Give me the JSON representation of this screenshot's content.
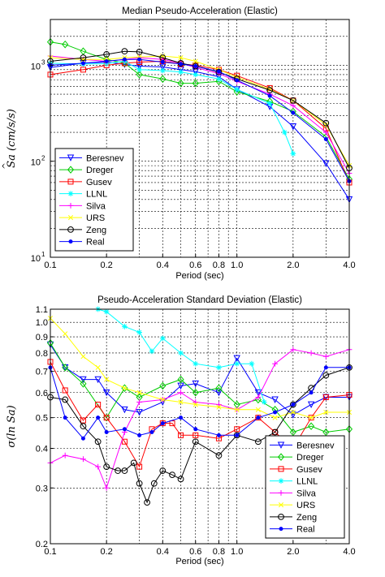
{
  "chart_data": [
    {
      "type": "line",
      "title": "Median Pseudo-Acceleration (Elastic)",
      "xlabel": "Period (sec)",
      "ylabel": "Sa (cm/s/s)",
      "ylabel_hat": "^",
      "xscale": "log",
      "yscale": "log",
      "xlim": [
        0.1,
        4.0
      ],
      "ylim": [
        10,
        3000
      ],
      "xticks": [
        {
          "v": 0.1,
          "label": "0.1"
        },
        {
          "v": 0.2,
          "label": "0.2"
        },
        {
          "v": 0.4,
          "label": "0.4"
        },
        {
          "v": 0.6,
          "label": "0.6"
        },
        {
          "v": 0.8,
          "label": "0.8"
        },
        {
          "v": 1.0,
          "label": "1.0"
        },
        {
          "v": 2.0,
          "label": "2.0"
        },
        {
          "v": 4.0,
          "label": "4.0"
        }
      ],
      "yticks": [
        {
          "v": 10,
          "base": "10",
          "exp": "1"
        },
        {
          "v": 100,
          "base": "10",
          "exp": "2"
        },
        {
          "v": 1000,
          "base": "10",
          "exp": "3"
        }
      ],
      "grid": true,
      "legend_position": "lower-left",
      "series": [
        {
          "name": "Beresnev",
          "color": "#0000ff",
          "marker": "triangle-down",
          "x": [
            0.1,
            0.15,
            0.2,
            0.25,
            0.3,
            0.4,
            0.5,
            0.6,
            0.8,
            1.0,
            1.5,
            2.0,
            3.0,
            4.0
          ],
          "y": [
            950,
            1050,
            1080,
            1020,
            980,
            960,
            900,
            860,
            760,
            560,
            370,
            230,
            95,
            40
          ]
        },
        {
          "name": "Dreger",
          "color": "#00cc00",
          "marker": "diamond",
          "x": [
            0.1,
            0.12,
            0.15,
            0.2,
            0.25,
            0.3,
            0.4,
            0.5,
            0.6,
            0.8,
            1.0,
            1.5,
            2.0,
            3.0,
            4.0
          ],
          "y": [
            1750,
            1650,
            1400,
            1150,
            1050,
            800,
            720,
            650,
            650,
            680,
            530,
            420,
            330,
            180,
            65
          ]
        },
        {
          "name": "Gusev",
          "color": "#ff0000",
          "marker": "square",
          "x": [
            0.1,
            0.15,
            0.2,
            0.25,
            0.3,
            0.4,
            0.5,
            0.6,
            0.8,
            1.0,
            1.5,
            2.0,
            3.0,
            4.0
          ],
          "y": [
            800,
            900,
            1000,
            1050,
            1080,
            1100,
            1030,
            1000,
            900,
            780,
            580,
            430,
            220,
            60
          ]
        },
        {
          "name": "LLNL",
          "color": "#00ffff",
          "marker": "star",
          "x": [
            0.1,
            0.15,
            0.2,
            0.25,
            0.3,
            0.4,
            0.5,
            0.6,
            0.8,
            1.0,
            1.5,
            1.8,
            2.0
          ],
          "y": [
            1050,
            1030,
            1040,
            1100,
            900,
            880,
            850,
            800,
            720,
            560,
            400,
            200,
            120
          ]
        },
        {
          "name": "Silva",
          "color": "#ff00ff",
          "marker": "plus",
          "x": [
            0.1,
            0.15,
            0.2,
            0.25,
            0.3,
            0.4,
            0.5,
            0.6,
            0.8,
            1.0,
            1.5,
            2.0,
            3.0,
            4.0
          ],
          "y": [
            1250,
            1150,
            1100,
            1150,
            1200,
            1150,
            1050,
            950,
            820,
            680,
            500,
            380,
            200,
            75
          ]
        },
        {
          "name": "URS",
          "color": "#ffff00",
          "marker": "x",
          "x": [
            0.1,
            0.15,
            0.2,
            0.25,
            0.3,
            0.4,
            0.5,
            0.6,
            0.8,
            1.0,
            1.5,
            2.0,
            3.0,
            4.0
          ],
          "y": [
            1200,
            1150,
            1150,
            1200,
            1220,
            1250,
            1200,
            1100,
            900,
            750,
            560,
            430,
            240,
            90
          ]
        },
        {
          "name": "Zeng",
          "color": "#000000",
          "marker": "circle",
          "x": [
            0.1,
            0.15,
            0.2,
            0.25,
            0.3,
            0.4,
            0.5,
            0.6,
            0.8,
            1.0,
            1.5,
            2.0,
            3.0,
            4.0
          ],
          "y": [
            1100,
            1200,
            1300,
            1400,
            1380,
            1200,
            1050,
            980,
            850,
            720,
            550,
            430,
            250,
            85
          ]
        },
        {
          "name": "Real",
          "color": "#0000ff",
          "marker": "dot",
          "x": [
            0.1,
            0.15,
            0.2,
            0.25,
            0.3,
            0.4,
            0.5,
            0.6,
            0.8,
            1.0,
            1.5,
            2.0,
            3.0,
            4.0
          ],
          "y": [
            1000,
            1050,
            1100,
            1150,
            1150,
            1080,
            1030,
            980,
            860,
            700,
            480,
            320,
            170,
            62
          ]
        }
      ]
    },
    {
      "type": "line",
      "title": "Pseudo-Acceleration Standard Deviation (Elastic)",
      "xlabel": "Period (sec)",
      "ylabel": "σ(ln Sa)",
      "xscale": "log",
      "yscale": "log",
      "xlim": [
        0.1,
        4.0
      ],
      "ylim": [
        0.2,
        1.1
      ],
      "xticks": [
        {
          "v": 0.1,
          "label": "0.1"
        },
        {
          "v": 0.2,
          "label": "0.2"
        },
        {
          "v": 0.4,
          "label": "0.4"
        },
        {
          "v": 0.6,
          "label": "0.6"
        },
        {
          "v": 0.8,
          "label": "0.8"
        },
        {
          "v": 1.0,
          "label": "1.0"
        },
        {
          "v": 2.0,
          "label": "2.0"
        },
        {
          "v": 4.0,
          "label": "4.0"
        }
      ],
      "yticks": [
        {
          "v": 0.2,
          "label": "0.2"
        },
        {
          "v": 0.3,
          "label": "0.3"
        },
        {
          "v": 0.4,
          "label": "0.4"
        },
        {
          "v": 0.5,
          "label": "0.5"
        },
        {
          "v": 0.6,
          "label": "0.6"
        },
        {
          "v": 0.7,
          "label": "0.7"
        },
        {
          "v": 0.8,
          "label": "0.8"
        },
        {
          "v": 0.9,
          "label": "0.9"
        },
        {
          "v": 1.0,
          "label": "1.0"
        },
        {
          "v": 1.1,
          "label": "1.1"
        }
      ],
      "grid": true,
      "legend_position": "lower-right",
      "series": [
        {
          "name": "Beresnev",
          "color": "#0000ff",
          "marker": "triangle-down",
          "x": [
            0.1,
            0.12,
            0.15,
            0.18,
            0.2,
            0.25,
            0.3,
            0.4,
            0.5,
            0.6,
            0.8,
            1.0,
            1.3,
            1.6,
            2.0,
            2.5,
            3.0,
            4.0
          ],
          "y": [
            0.85,
            0.72,
            0.66,
            0.66,
            0.6,
            0.53,
            0.52,
            0.56,
            0.63,
            0.64,
            0.6,
            0.77,
            0.6,
            0.57,
            0.51,
            0.55,
            0.58,
            0.58
          ]
        },
        {
          "name": "Dreger",
          "color": "#00cc00",
          "marker": "diamond",
          "x": [
            0.1,
            0.12,
            0.15,
            0.2,
            0.25,
            0.3,
            0.4,
            0.5,
            0.6,
            0.8,
            1.0,
            1.3,
            1.6,
            2.0,
            2.5,
            3.0,
            4.0
          ],
          "y": [
            0.86,
            0.72,
            0.64,
            0.5,
            0.62,
            0.58,
            0.63,
            0.66,
            0.6,
            0.62,
            0.55,
            0.57,
            0.53,
            0.45,
            0.47,
            0.45,
            0.46
          ]
        },
        {
          "name": "Gusev",
          "color": "#ff0000",
          "marker": "square",
          "x": [
            0.1,
            0.12,
            0.15,
            0.18,
            0.2,
            0.25,
            0.3,
            0.35,
            0.4,
            0.45,
            0.5,
            0.6,
            0.8,
            1.0,
            1.3,
            1.6,
            2.0,
            2.5,
            3.0,
            4.0
          ],
          "y": [
            0.75,
            0.61,
            0.49,
            0.55,
            0.5,
            0.42,
            0.35,
            0.46,
            0.48,
            0.48,
            0.44,
            0.44,
            0.43,
            0.46,
            0.5,
            0.45,
            0.4,
            0.5,
            0.58,
            0.59
          ]
        },
        {
          "name": "LLNL",
          "color": "#00ffff",
          "marker": "star",
          "x": [
            0.18,
            0.2,
            0.25,
            0.3,
            0.35,
            0.4,
            0.5,
            0.6,
            0.8,
            1.0,
            1.2,
            1.4
          ],
          "y": [
            1.1,
            1.08,
            0.97,
            0.93,
            0.81,
            0.89,
            0.8,
            0.74,
            0.72,
            0.74,
            0.74,
            0.56
          ]
        },
        {
          "name": "Silva",
          "color": "#ff00ff",
          "marker": "plus",
          "x": [
            0.1,
            0.12,
            0.15,
            0.18,
            0.2,
            0.25,
            0.3,
            0.4,
            0.5,
            0.6,
            0.8,
            1.0,
            1.3,
            1.6,
            2.0,
            2.5,
            3.0,
            4.0
          ],
          "y": [
            0.36,
            0.38,
            0.37,
            0.35,
            0.3,
            0.45,
            0.56,
            0.57,
            0.6,
            0.56,
            0.55,
            0.53,
            0.58,
            0.74,
            0.82,
            0.8,
            0.78,
            0.82
          ]
        },
        {
          "name": "URS",
          "color": "#ffff00",
          "marker": "x",
          "x": [
            0.1,
            0.12,
            0.15,
            0.18,
            0.2,
            0.25,
            0.3,
            0.4,
            0.5,
            0.6,
            0.8,
            1.0,
            1.3,
            1.6,
            2.0,
            2.5,
            3.0,
            4.0
          ],
          "y": [
            1.03,
            0.92,
            0.78,
            0.72,
            0.66,
            0.62,
            0.6,
            0.57,
            0.56,
            0.55,
            0.54,
            0.53,
            0.53,
            0.5,
            0.52,
            0.5,
            0.52,
            0.52
          ]
        },
        {
          "name": "Zeng",
          "color": "#000000",
          "marker": "circle",
          "x": [
            0.1,
            0.12,
            0.15,
            0.18,
            0.2,
            0.23,
            0.25,
            0.28,
            0.3,
            0.33,
            0.36,
            0.4,
            0.45,
            0.5,
            0.6,
            0.8,
            1.0,
            1.3,
            1.6,
            2.0,
            2.5,
            3.0,
            4.0
          ],
          "y": [
            0.58,
            0.57,
            0.47,
            0.42,
            0.35,
            0.34,
            0.34,
            0.36,
            0.31,
            0.27,
            0.31,
            0.34,
            0.33,
            0.32,
            0.42,
            0.38,
            0.44,
            0.42,
            0.45,
            0.55,
            0.62,
            0.68,
            0.72
          ]
        },
        {
          "name": "Real",
          "color": "#0000ff",
          "marker": "dot",
          "x": [
            0.1,
            0.12,
            0.15,
            0.18,
            0.2,
            0.25,
            0.3,
            0.35,
            0.4,
            0.5,
            0.6,
            0.8,
            1.0,
            1.3,
            1.6,
            2.0,
            2.5,
            3.0,
            4.0
          ],
          "y": [
            0.72,
            0.5,
            0.43,
            0.5,
            0.45,
            0.46,
            0.44,
            0.45,
            0.48,
            0.5,
            0.46,
            0.44,
            0.44,
            0.5,
            0.52,
            0.55,
            0.6,
            0.72,
            0.72
          ]
        }
      ]
    }
  ]
}
